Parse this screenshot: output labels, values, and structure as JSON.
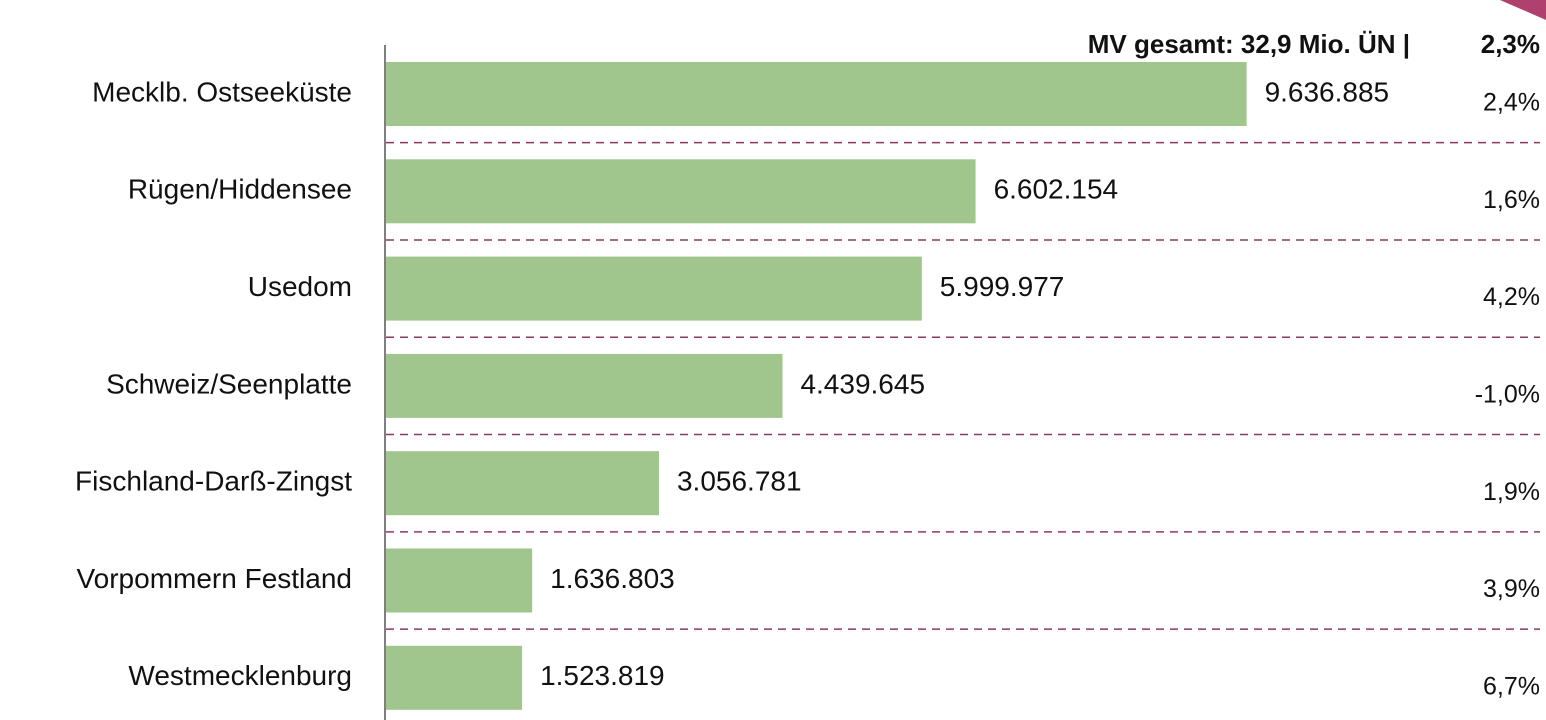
{
  "chart_data": {
    "type": "bar",
    "orientation": "horizontal",
    "header": "MV gesamt:  32,9 Mio. ÜN |",
    "header_change": "2,3%",
    "categories": [
      "Mecklb. Ostseeküste",
      "Rügen/Hiddensee",
      "Usedom",
      "Schweiz/Seenplatte",
      "Fischland-Darß-Zingst",
      "Vorpommern Festland",
      "Westmecklenburg"
    ],
    "values": [
      9636885,
      6602154,
      5999977,
      4439645,
      3056781,
      1636803,
      1523819
    ],
    "value_labels": [
      "9.636.885",
      "6.602.154",
      "5.999.977",
      "4.439.645",
      "3.056.781",
      "1.636.803",
      "1.523.819"
    ],
    "change_labels": [
      "2,4%",
      "1,6%",
      "4,2%",
      "-1,0%",
      "1,9%",
      "3,9%",
      "6,7%"
    ],
    "color": "#a0c58d",
    "separator_color": "#8b3a62",
    "xlim": [
      0,
      10000000
    ]
  }
}
